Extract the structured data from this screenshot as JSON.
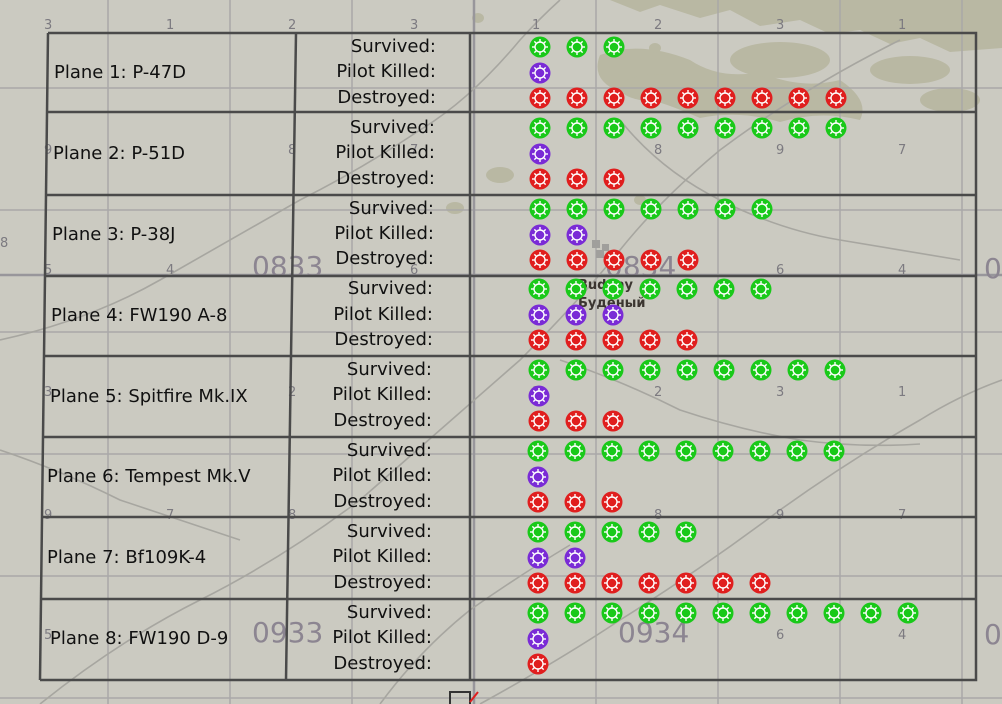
{
  "map_labels": {
    "sectors": [
      "0833",
      "0834",
      "0933",
      "0934"
    ],
    "town": [
      "Budeny",
      "Буденый"
    ],
    "edge_digits": [
      "3",
      "1",
      "2",
      "3",
      "1",
      "2",
      "3",
      "1",
      "8",
      "7",
      "6",
      "4",
      "5",
      "6",
      "4",
      "9",
      "8",
      "7",
      "1",
      "2",
      "3",
      "8",
      "9",
      "7",
      "6",
      "4",
      "0",
      "0"
    ]
  },
  "row_labels": {
    "survived": "Survived:",
    "pilot_killed": "Pilot Killed:",
    "destroyed": "Destroyed:"
  },
  "colors": {
    "survived": "#19c919",
    "pilot_killed": "#7a2bd6",
    "destroyed": "#e01e1e"
  },
  "planes": [
    {
      "title": "Plane 1: P-47D",
      "survived": 3,
      "pilot_killed": 1,
      "destroyed": 9
    },
    {
      "title": "Plane 2: P-51D",
      "survived": 9,
      "pilot_killed": 1,
      "destroyed": 3
    },
    {
      "title": "Plane 3: P-38J",
      "survived": 7,
      "pilot_killed": 2,
      "destroyed": 5
    },
    {
      "title": "Plane 4: FW190 A-8",
      "survived": 7,
      "pilot_killed": 3,
      "destroyed": 5
    },
    {
      "title": "Plane 5: Spitfire Mk.IX",
      "survived": 9,
      "pilot_killed": 1,
      "destroyed": 3
    },
    {
      "title": "Plane 6: Tempest Mk.V",
      "survived": 9,
      "pilot_killed": 1,
      "destroyed": 3
    },
    {
      "title": "Plane 7: Bf109K-4",
      "survived": 5,
      "pilot_killed": 2,
      "destroyed": 7
    },
    {
      "title": "Plane 8: FW190 D-9",
      "survived": 11,
      "pilot_killed": 1,
      "destroyed": 1
    }
  ]
}
